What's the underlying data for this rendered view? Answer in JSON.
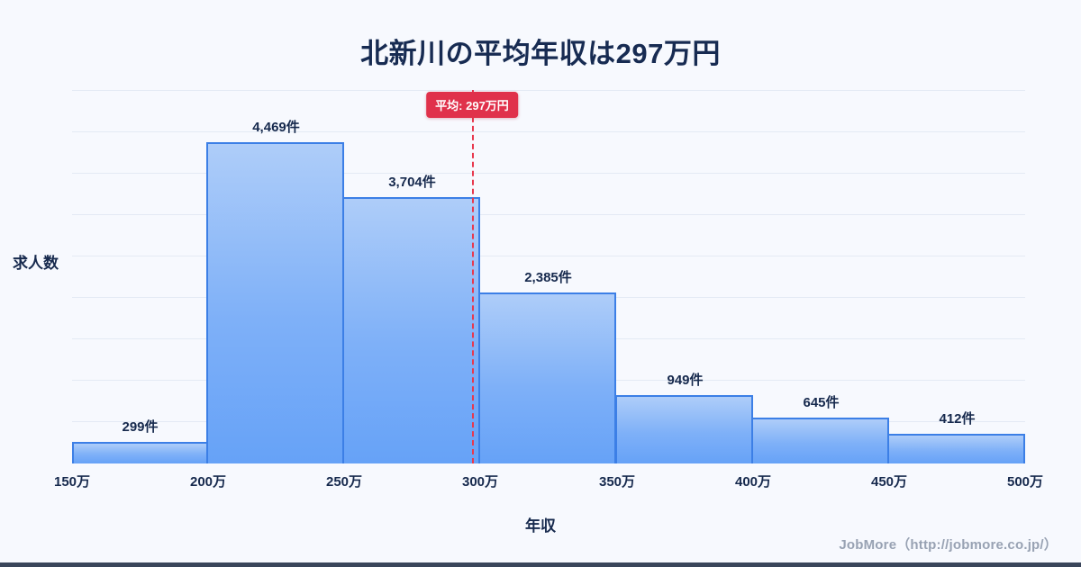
{
  "title": "北新川の平均年収は297万円",
  "chart_data": {
    "type": "bar",
    "subtype": "histogram",
    "title": "北新川の平均年収は297万円",
    "xlabel": "年収",
    "ylabel": "求人数",
    "bin_edges_labels": [
      "150万",
      "200万",
      "250万",
      "300万",
      "350万",
      "400万",
      "450万",
      "500万"
    ],
    "bin_edges_values": [
      150,
      200,
      250,
      300,
      350,
      400,
      450,
      500
    ],
    "values": [
      299,
      4469,
      3704,
      2385,
      949,
      645,
      412
    ],
    "value_labels": [
      "299件",
      "4,469件",
      "3,704件",
      "2,385件",
      "949件",
      "645件",
      "412件"
    ],
    "ylim": [
      0,
      5200
    ],
    "grid": "horizontal",
    "average": {
      "value": 297,
      "label": "平均: 297万円",
      "x_min": 150,
      "x_max": 500
    },
    "colors": {
      "bar_fill_top": "#aecdf9",
      "bar_fill_bottom": "#66a2f7",
      "bar_border": "#3c7fe6",
      "average_line": "#e8394e",
      "badge_background": "#e0314b",
      "badge_text": "#ffffff",
      "title_text": "#172b52",
      "background": "#f7f9fe",
      "gridline": "#e4eaf4"
    }
  },
  "footer": {
    "credit": "JobMore（http://jobmore.co.jp/）"
  }
}
